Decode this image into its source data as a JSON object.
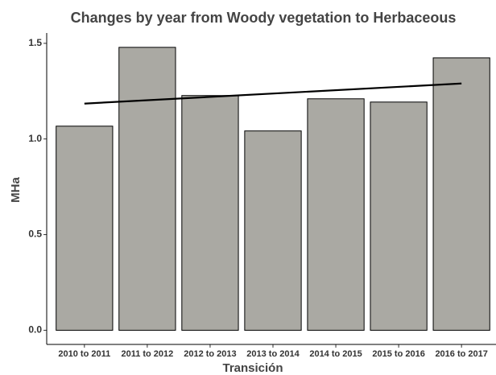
{
  "chart_data": {
    "type": "bar",
    "title": "Changes by year from Woody vegetation to Herbaceous",
    "x_label": "Transición",
    "y_label": "MHa",
    "categories": [
      "2010 to 2011",
      "2011 to 2012",
      "2012 to 2013",
      "2013 to 2014",
      "2014 to 2015",
      "2015 to 2016",
      "2016 to 2017"
    ],
    "values": [
      1.067,
      1.479,
      1.227,
      1.042,
      1.21,
      1.193,
      1.424
    ],
    "color": "#aaa9a3",
    "trend": {
      "color": "#000000",
      "values": [
        1.185,
        1.29
      ]
    },
    "ylim": [
      -0.074,
      1.554
    ],
    "yticks": [
      {
        "value": 0,
        "label": "0.0"
      },
      0.5,
      {
        "value": 1,
        "label": "1.0"
      },
      1.5
    ],
    "grid": false
  }
}
